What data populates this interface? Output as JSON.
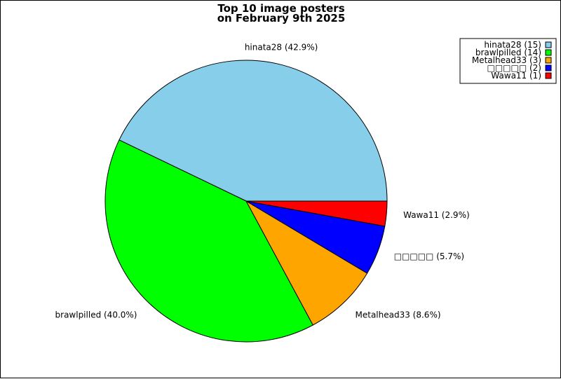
{
  "chart_data": {
    "type": "pie",
    "title": "Top 10 image posters",
    "subtitle": "on February 9th 2025",
    "legend_position": "top-right",
    "slices": [
      {
        "name": "hinata28",
        "value": 15,
        "percent_label": "42.9%",
        "color": "#87CEEB"
      },
      {
        "name": "brawlpilled",
        "value": 14,
        "percent_label": "40.0%",
        "color": "#00FF00"
      },
      {
        "name": "Metalhead33",
        "value": 3,
        "percent_label": "8.6%",
        "color": "#FFA500"
      },
      {
        "name": "□□□□□",
        "value": 2,
        "percent_label": "5.7%",
        "color": "#0000FF"
      },
      {
        "name": "Wawa11",
        "value": 1,
        "percent_label": "2.9%",
        "color": "#FF0000"
      }
    ]
  }
}
